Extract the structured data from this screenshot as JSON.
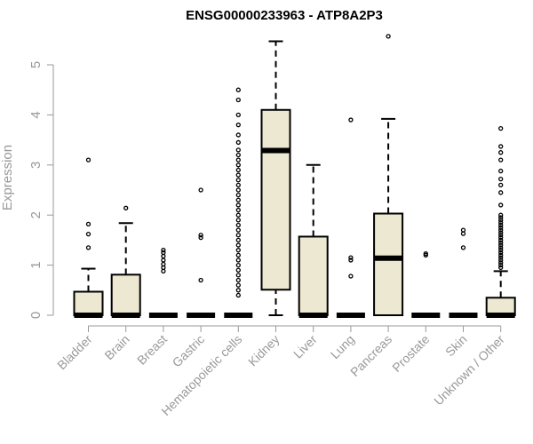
{
  "chart_data": {
    "type": "boxplot",
    "title": "ENSG00000233963 - ATP8A2P3",
    "xlabel": "",
    "ylabel": "Expression",
    "ylim": [
      0,
      5.5
    ],
    "yticks": [
      0,
      1,
      2,
      3,
      4,
      5
    ],
    "grid": false,
    "box_fill": "#ede8d1",
    "axis_color": "#999999",
    "categories": [
      "Bladder",
      "Brain",
      "Breast",
      "Gastric",
      "Hematopoietic cells",
      "Kidney",
      "Liver",
      "Lung",
      "Pancreas",
      "Prostate",
      "Skin",
      "Unknown / Other"
    ],
    "series": [
      {
        "q1": 0,
        "median": 0,
        "q3": 0.47,
        "whisker_low": 0,
        "whisker_high": 0.93,
        "outliers": [
          1.35,
          1.62,
          1.82,
          3.1
        ]
      },
      {
        "q1": 0,
        "median": 0,
        "q3": 0.81,
        "whisker_low": 0,
        "whisker_high": 1.84,
        "outliers": [
          2.14
        ]
      },
      {
        "q1": 0,
        "median": 0,
        "q3": 0,
        "whisker_low": 0,
        "whisker_high": 0,
        "outliers": [
          0.88,
          0.95,
          1.02,
          1.1,
          1.18,
          1.25,
          1.3
        ]
      },
      {
        "q1": 0,
        "median": 0,
        "q3": 0,
        "whisker_low": 0,
        "whisker_high": 0,
        "outliers": [
          0.7,
          1.55,
          1.6,
          2.5
        ]
      },
      {
        "q1": 0,
        "median": 0,
        "q3": 0,
        "whisker_low": 0,
        "whisker_high": 0,
        "outliers": [
          0.4,
          0.5,
          0.6,
          0.7,
          0.8,
          0.9,
          1.0,
          1.1,
          1.2,
          1.3,
          1.4,
          1.5,
          1.6,
          1.7,
          1.8,
          1.9,
          2.0,
          2.1,
          2.2,
          2.3,
          2.4,
          2.5,
          2.6,
          2.7,
          2.8,
          2.9,
          3.0,
          3.1,
          3.2,
          3.3,
          3.45,
          3.6,
          3.8,
          4.0,
          4.3,
          4.5
        ]
      },
      {
        "q1": 0.51,
        "median": 3.29,
        "q3": 4.1,
        "whisker_low": 0,
        "whisker_high": 5.47,
        "outliers": []
      },
      {
        "q1": 0,
        "median": 0,
        "q3": 1.57,
        "whisker_low": 0,
        "whisker_high": 3.0,
        "outliers": []
      },
      {
        "q1": 0,
        "median": 0,
        "q3": 0,
        "whisker_low": 0,
        "whisker_high": 0,
        "outliers": [
          0.78,
          1.1,
          1.15,
          3.9
        ]
      },
      {
        "q1": 0,
        "median": 1.14,
        "q3": 2.03,
        "whisker_low": 0,
        "whisker_high": 3.92,
        "outliers": [
          5.57
        ]
      },
      {
        "q1": 0,
        "median": 0,
        "q3": 0,
        "whisker_low": 0,
        "whisker_high": 0,
        "outliers": [
          1.2,
          1.23
        ]
      },
      {
        "q1": 0,
        "median": 0,
        "q3": 0,
        "whisker_low": 0,
        "whisker_high": 0,
        "outliers": [
          1.35,
          1.63,
          1.7
        ]
      },
      {
        "q1": 0,
        "median": 0,
        "q3": 0.35,
        "whisker_low": 0,
        "whisker_high": 0.88,
        "outliers": [
          0.95,
          1.0,
          1.05,
          1.1,
          1.15,
          1.2,
          1.25,
          1.3,
          1.35,
          1.4,
          1.45,
          1.5,
          1.55,
          1.6,
          1.65,
          1.7,
          1.75,
          1.8,
          1.85,
          1.9,
          1.95,
          2.0,
          2.2,
          2.45,
          2.6,
          2.72,
          2.88,
          3.1,
          3.25,
          3.37,
          3.73
        ]
      }
    ]
  }
}
